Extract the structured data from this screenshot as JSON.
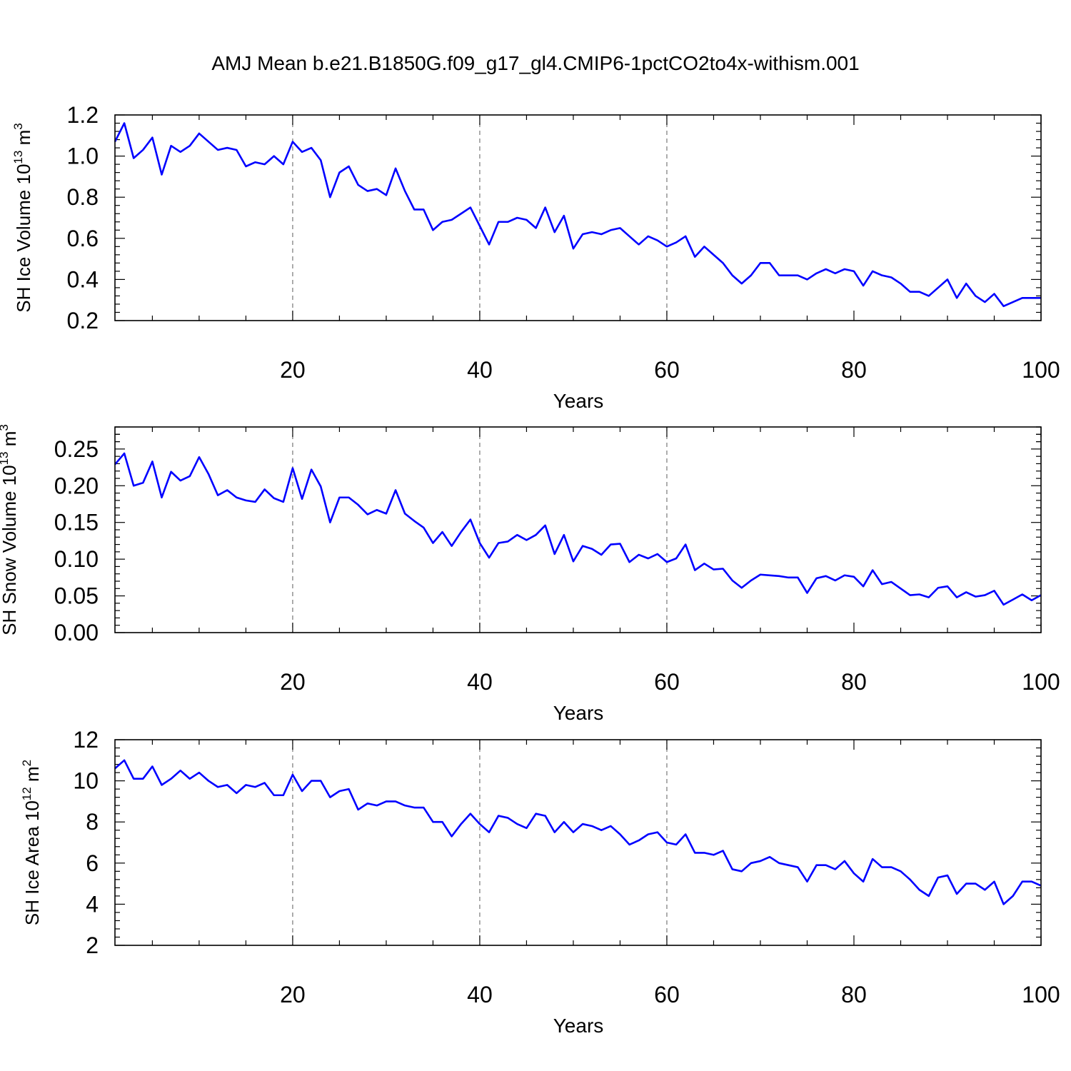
{
  "title": "AMJ Mean b.e21.B1850G.f09_g17_gl4.CMIP6-1pctCO2to4x-withism.001",
  "chart_data": [
    {
      "type": "line",
      "title": "AMJ Mean b.e21.B1850G.f09_g17_gl4.CMIP6-1pctCO2to4x-withism.001",
      "xlabel": "Years",
      "ylabel": {
        "main": "SH Ice Volume 10",
        "exp": "13",
        "unit": " m",
        "power": "3"
      },
      "xlim": [
        1,
        100
      ],
      "ylim": [
        0.2,
        1.2
      ],
      "xticks": [
        20,
        40,
        60,
        80,
        100
      ],
      "yticks": [
        "0.2",
        "0.4",
        "0.6",
        "0.8",
        "1.0",
        "1.2"
      ],
      "grid_x": [
        20,
        40,
        60
      ],
      "color": "#0000ff",
      "series": [
        {
          "name": "SH Ice Volume",
          "values": [
            1.07,
            1.16,
            0.99,
            1.03,
            1.09,
            0.91,
            1.05,
            1.02,
            1.05,
            1.11,
            1.07,
            1.03,
            1.04,
            1.03,
            0.95,
            0.97,
            0.96,
            1.0,
            0.96,
            1.07,
            1.02,
            1.04,
            0.98,
            0.8,
            0.92,
            0.95,
            0.86,
            0.83,
            0.84,
            0.81,
            0.94,
            0.83,
            0.74,
            0.74,
            0.64,
            0.68,
            0.69,
            0.72,
            0.75,
            0.66,
            0.57,
            0.68,
            0.68,
            0.7,
            0.69,
            0.65,
            0.75,
            0.63,
            0.71,
            0.55,
            0.62,
            0.63,
            0.62,
            0.64,
            0.65,
            0.61,
            0.57,
            0.61,
            0.59,
            0.56,
            0.58,
            0.61,
            0.51,
            0.56,
            0.52,
            0.48,
            0.42,
            0.38,
            0.42,
            0.48,
            0.48,
            0.42,
            0.42,
            0.42,
            0.4,
            0.43,
            0.45,
            0.43,
            0.45,
            0.44,
            0.37,
            0.44,
            0.42,
            0.41,
            0.38,
            0.34,
            0.34,
            0.32,
            0.36,
            0.4,
            0.31,
            0.38,
            0.32,
            0.29,
            0.33,
            0.27,
            0.29,
            0.31,
            0.31,
            0.31
          ]
        }
      ]
    },
    {
      "type": "line",
      "xlabel": "Years",
      "ylabel": {
        "main": "SH Snow Volume 10",
        "exp": "13",
        "unit": " m",
        "power": "3"
      },
      "xlim": [
        1,
        100
      ],
      "ylim": [
        0.0,
        0.28
      ],
      "xticks": [
        20,
        40,
        60,
        80,
        100
      ],
      "yticks": [
        "0.00",
        "0.05",
        "0.10",
        "0.15",
        "0.20",
        "0.25"
      ],
      "grid_x": [
        20,
        40,
        60
      ],
      "color": "#0000ff",
      "series": [
        {
          "name": "SH Snow Volume",
          "values": [
            0.229,
            0.244,
            0.2,
            0.204,
            0.233,
            0.184,
            0.219,
            0.207,
            0.213,
            0.239,
            0.216,
            0.187,
            0.194,
            0.184,
            0.18,
            0.178,
            0.195,
            0.183,
            0.178,
            0.224,
            0.182,
            0.222,
            0.199,
            0.15,
            0.184,
            0.184,
            0.174,
            0.161,
            0.167,
            0.162,
            0.194,
            0.162,
            0.152,
            0.143,
            0.122,
            0.137,
            0.118,
            0.137,
            0.154,
            0.122,
            0.102,
            0.122,
            0.124,
            0.133,
            0.126,
            0.133,
            0.146,
            0.107,
            0.133,
            0.097,
            0.118,
            0.114,
            0.106,
            0.12,
            0.121,
            0.096,
            0.106,
            0.101,
            0.107,
            0.096,
            0.101,
            0.12,
            0.085,
            0.094,
            0.086,
            0.087,
            0.071,
            0.061,
            0.071,
            0.079,
            0.078,
            0.077,
            0.075,
            0.075,
            0.054,
            0.074,
            0.077,
            0.071,
            0.078,
            0.076,
            0.063,
            0.085,
            0.066,
            0.069,
            0.06,
            0.051,
            0.052,
            0.048,
            0.061,
            0.063,
            0.048,
            0.055,
            0.049,
            0.051,
            0.057,
            0.038,
            0.045,
            0.052,
            0.044,
            0.051
          ]
        }
      ]
    },
    {
      "type": "line",
      "xlabel": "Years",
      "ylabel": {
        "main": "SH Ice Area 10",
        "exp": "12",
        "unit": " m",
        "power": "2"
      },
      "xlim": [
        1,
        100
      ],
      "ylim": [
        2,
        12
      ],
      "xticks": [
        20,
        40,
        60,
        80,
        100
      ],
      "yticks": [
        "2",
        "4",
        "6",
        "8",
        "10",
        "12"
      ],
      "grid_x": [
        20,
        40,
        60
      ],
      "color": "#0000ff",
      "series": [
        {
          "name": "SH Ice Area",
          "values": [
            10.6,
            11.0,
            10.1,
            10.1,
            10.7,
            9.8,
            10.1,
            10.5,
            10.1,
            10.4,
            10.0,
            9.7,
            9.8,
            9.4,
            9.8,
            9.7,
            9.9,
            9.3,
            9.3,
            10.3,
            9.5,
            10.0,
            10.0,
            9.2,
            9.5,
            9.6,
            8.6,
            8.9,
            8.8,
            9.0,
            9.0,
            8.8,
            8.7,
            8.7,
            8.0,
            8.0,
            7.3,
            7.9,
            8.4,
            7.9,
            7.5,
            8.3,
            8.2,
            7.9,
            7.7,
            8.4,
            8.3,
            7.5,
            8.0,
            7.5,
            7.9,
            7.8,
            7.6,
            7.8,
            7.4,
            6.9,
            7.1,
            7.4,
            7.5,
            7.0,
            6.9,
            7.4,
            6.5,
            6.5,
            6.4,
            6.6,
            5.7,
            5.6,
            6.0,
            6.1,
            6.3,
            6.0,
            5.9,
            5.8,
            5.1,
            5.9,
            5.9,
            5.7,
            6.1,
            5.5,
            5.1,
            6.2,
            5.8,
            5.8,
            5.6,
            5.2,
            4.7,
            4.4,
            5.3,
            5.4,
            4.5,
            5.0,
            5.0,
            4.7,
            5.1,
            4.0,
            4.4,
            5.1,
            5.1,
            4.9
          ]
        }
      ]
    }
  ]
}
